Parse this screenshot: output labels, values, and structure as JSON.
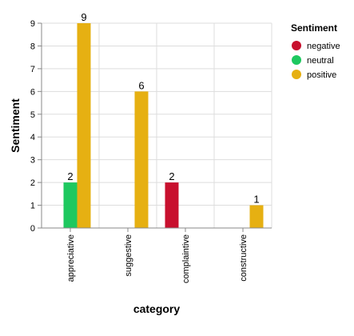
{
  "chart_data": {
    "type": "bar",
    "grouped": true,
    "categories": [
      "appreciative",
      "suggestive",
      "complaintive",
      "constructive"
    ],
    "series": [
      {
        "name": "negative",
        "color": "#c8102e",
        "values": [
          0,
          0,
          2,
          0
        ]
      },
      {
        "name": "neutral",
        "color": "#1ec85f",
        "values": [
          2,
          0,
          0,
          0
        ]
      },
      {
        "name": "positive",
        "color": "#e6b012",
        "values": [
          9,
          6,
          0,
          1
        ]
      }
    ],
    "xlabel": "category",
    "ylabel": "Sentiment",
    "ylim": [
      0,
      9
    ],
    "yticks": [
      0,
      1,
      2,
      3,
      4,
      5,
      6,
      7,
      8,
      9
    ],
    "grid": true,
    "legend": {
      "title": "Sentiment",
      "placement": "top-right"
    },
    "data_labels": true
  }
}
